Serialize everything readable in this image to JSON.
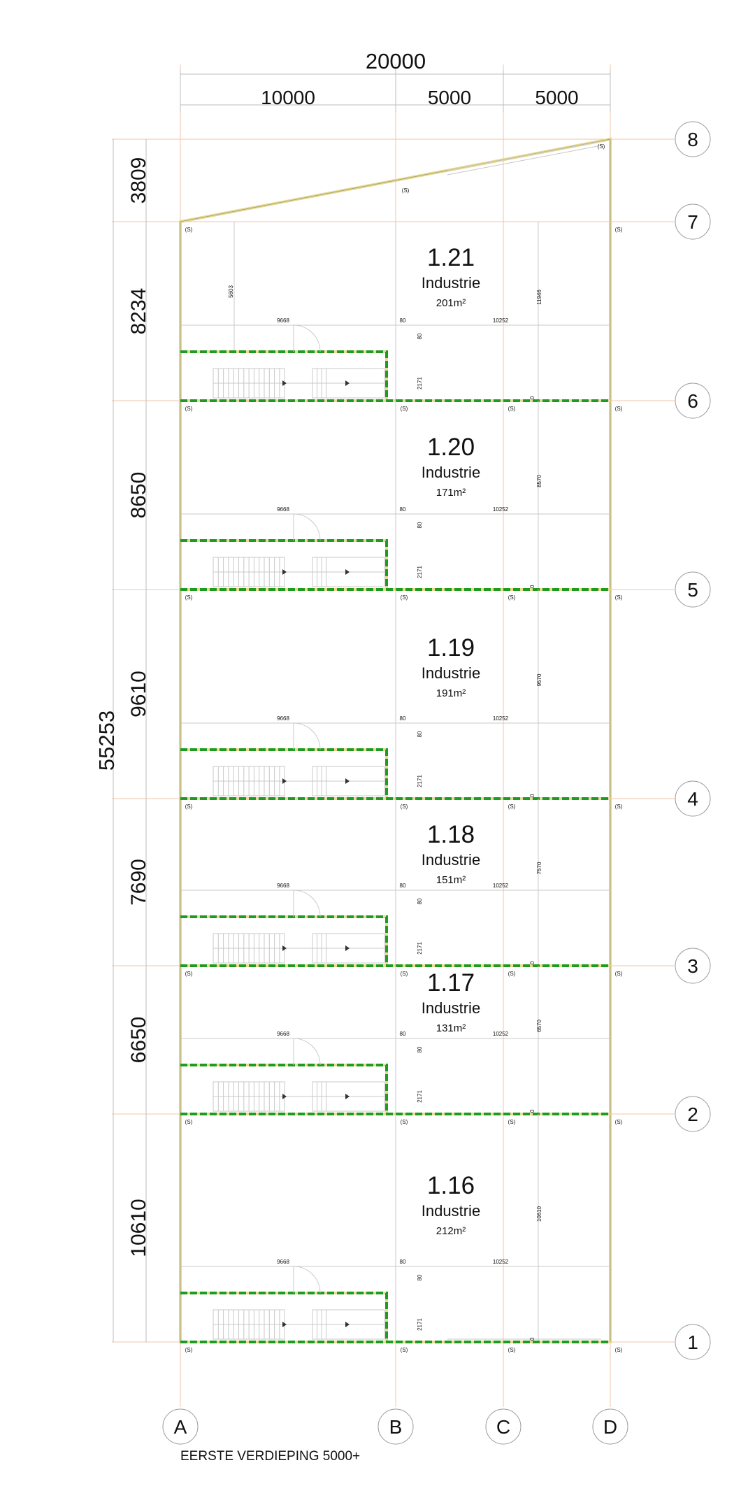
{
  "drawing_title": "EERSTE VERDIEPING 5000+",
  "overall_width": "20000",
  "bay_widths": [
    "10000",
    "5000",
    "5000"
  ],
  "overall_length": "55253",
  "bay_lengths": [
    "3809",
    "8234",
    "8650",
    "9610",
    "7690",
    "6650",
    "10610"
  ],
  "column_axes": [
    "A",
    "B",
    "C",
    "D"
  ],
  "row_axes": [
    "8",
    "7",
    "6",
    "5",
    "4",
    "3",
    "2",
    "1"
  ],
  "column_symbol": "(S)",
  "rooms": [
    {
      "number": "1.21",
      "use": "Industrie",
      "area": "201m²",
      "depth": "11946",
      "extra_dim": "5603"
    },
    {
      "number": "1.20",
      "use": "Industrie",
      "area": "171m²",
      "depth": "8570"
    },
    {
      "number": "1.19",
      "use": "Industrie",
      "area": "191m²",
      "depth": "9570"
    },
    {
      "number": "1.18",
      "use": "Industrie",
      "area": "151m²",
      "depth": "7570"
    },
    {
      "number": "1.17",
      "use": "Industrie",
      "area": "131m²",
      "depth": "6570"
    },
    {
      "number": "1.16",
      "use": "Industrie",
      "area": "212m²",
      "depth": "10610"
    }
  ],
  "room_dims": {
    "left": "9668",
    "gap": "80",
    "right": "10252",
    "office_depth": "2171",
    "wall": "80",
    "door": "80"
  },
  "colors": {
    "grid": "#f2c4ae",
    "wall": "#e6d98f",
    "fire_separation": "#1f9a24"
  }
}
